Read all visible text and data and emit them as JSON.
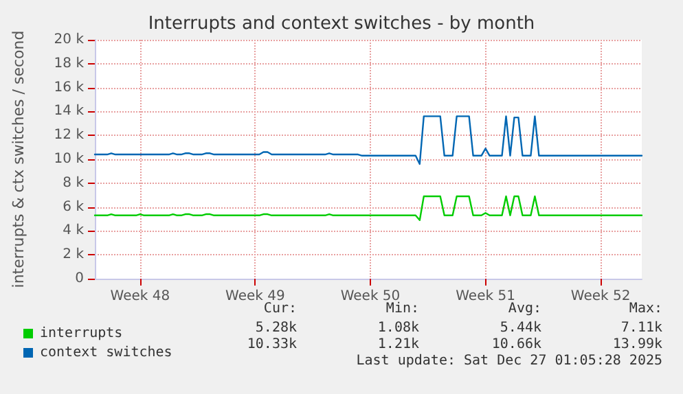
{
  "chart_data": {
    "type": "line",
    "title": "Interrupts and context switches - by month",
    "ylabel": "interrupts & ctx switches / second",
    "categories": [
      null,
      null,
      null,
      null,
      null,
      null,
      null,
      null,
      null,
      null,
      null,
      "Week 48",
      null,
      null,
      null,
      null,
      null,
      null,
      null,
      null,
      null,
      null,
      null,
      null,
      null,
      null,
      null,
      null,
      null,
      null,
      null,
      null,
      null,
      null,
      null,
      null,
      null,
      null,
      null,
      "Week 49",
      null,
      null,
      null,
      null,
      null,
      null,
      null,
      null,
      null,
      null,
      null,
      null,
      null,
      null,
      null,
      null,
      null,
      null,
      null,
      null,
      null,
      null,
      null,
      null,
      null,
      null,
      null,
      "Week 50",
      null,
      null,
      null,
      null,
      null,
      null,
      null,
      null,
      null,
      null,
      null,
      null,
      null,
      null,
      null,
      null,
      null,
      null,
      null,
      null,
      null,
      null,
      null,
      null,
      null,
      null,
      null,
      "Week 51",
      null,
      null,
      null,
      null,
      null,
      null,
      null,
      null,
      null,
      null,
      null,
      null,
      null,
      null,
      null,
      null,
      null,
      null,
      null,
      null,
      null,
      null,
      null,
      null,
      null,
      null,
      null,
      "Week 52",
      null,
      null,
      null,
      null,
      null,
      null,
      null,
      null,
      null,
      null
    ],
    "ylim": [
      0,
      20000
    ],
    "yticks": [
      {
        "value": 0,
        "label": "0"
      },
      {
        "value": 2000,
        "label": "2 k"
      },
      {
        "value": 4000,
        "label": "4 k"
      },
      {
        "value": 6000,
        "label": "6 k"
      },
      {
        "value": 8000,
        "label": "8 k"
      },
      {
        "value": 10000,
        "label": "10 k"
      },
      {
        "value": 12000,
        "label": "12 k"
      },
      {
        "value": 14000,
        "label": "14 k"
      },
      {
        "value": 16000,
        "label": "16 k"
      },
      {
        "value": 18000,
        "label": "18 k"
      },
      {
        "value": 20000,
        "label": "20 k"
      }
    ],
    "grid": true,
    "legend": "bottom left",
    "marker": "none",
    "line_style": "solid",
    "series": [
      {
        "name": "interrupts",
        "color": "#00cc00",
        "values": [
          5300,
          5300,
          5300,
          5300,
          5400,
          5300,
          5300,
          5300,
          5300,
          5300,
          5300,
          5400,
          5300,
          5300,
          5300,
          5300,
          5300,
          5300,
          5300,
          5400,
          5300,
          5300,
          5400,
          5400,
          5300,
          5300,
          5300,
          5400,
          5400,
          5300,
          5300,
          5300,
          5300,
          5300,
          5300,
          5300,
          5300,
          5300,
          5300,
          5300,
          5300,
          5400,
          5400,
          5300,
          5300,
          5300,
          5300,
          5300,
          5300,
          5300,
          5300,
          5300,
          5300,
          5300,
          5300,
          5300,
          5300,
          5400,
          5300,
          5300,
          5300,
          5300,
          5300,
          5300,
          5300,
          5300,
          5300,
          5300,
          5300,
          5300,
          5300,
          5300,
          5300,
          5300,
          5300,
          5300,
          5300,
          5300,
          5300,
          4900,
          6900,
          6900,
          6900,
          6900,
          6900,
          5300,
          5300,
          5300,
          6900,
          6900,
          6900,
          6900,
          5300,
          5300,
          5300,
          5500,
          5300,
          5300,
          5300,
          5300,
          6900,
          5300,
          6900,
          6900,
          5300,
          5300,
          5300,
          6900,
          5300,
          5300,
          5300,
          5300,
          5300,
          5300,
          5300,
          5300,
          5300,
          5300,
          5300,
          5300,
          5300,
          5300,
          5300,
          5300,
          5300,
          5300,
          5300,
          5300,
          5300,
          5300,
          5300,
          5300,
          5300,
          5300
        ]
      },
      {
        "name": "context switches",
        "color": "#0066b3",
        "values": [
          10400,
          10400,
          10400,
          10400,
          10500,
          10400,
          10400,
          10400,
          10400,
          10400,
          10400,
          10400,
          10400,
          10400,
          10400,
          10400,
          10400,
          10400,
          10400,
          10500,
          10400,
          10400,
          10500,
          10500,
          10400,
          10400,
          10400,
          10500,
          10500,
          10400,
          10400,
          10400,
          10400,
          10400,
          10400,
          10400,
          10400,
          10400,
          10400,
          10400,
          10400,
          10600,
          10600,
          10400,
          10400,
          10400,
          10400,
          10400,
          10400,
          10400,
          10400,
          10400,
          10400,
          10400,
          10400,
          10400,
          10400,
          10500,
          10400,
          10400,
          10400,
          10400,
          10400,
          10400,
          10400,
          10300,
          10300,
          10300,
          10300,
          10300,
          10300,
          10300,
          10300,
          10300,
          10300,
          10300,
          10300,
          10300,
          10300,
          9600,
          13600,
          13600,
          13600,
          13600,
          13600,
          10300,
          10300,
          10300,
          13600,
          13600,
          13600,
          13600,
          10300,
          10300,
          10300,
          10900,
          10300,
          10300,
          10300,
          10300,
          13600,
          10300,
          13500,
          13500,
          10300,
          10300,
          10300,
          13600,
          10300,
          10300,
          10300,
          10300,
          10300,
          10300,
          10300,
          10300,
          10300,
          10300,
          10300,
          10300,
          10300,
          10300,
          10300,
          10300,
          10300,
          10300,
          10300,
          10300,
          10300,
          10300,
          10300,
          10300,
          10300,
          10300
        ]
      }
    ],
    "annotations": [
      "Cur:",
      "Min:",
      "Avg:",
      "Max:",
      "5.28k",
      "1.08k",
      "5.44k",
      "7.11k",
      "10.33k",
      "1.21k",
      "10.66k",
      "13.99k",
      "Last update: Sat Dec 27 01:05:28 2025"
    ]
  }
}
